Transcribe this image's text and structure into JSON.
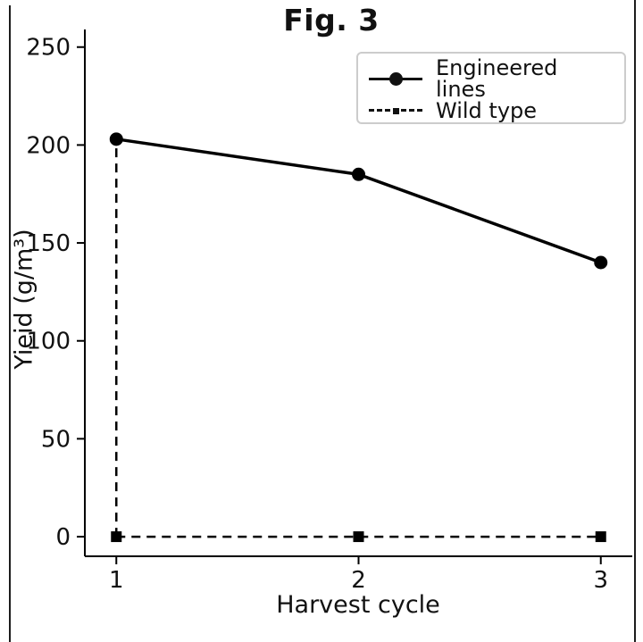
{
  "figure": {
    "title": "Fig. 3",
    "xlabel": "Harvest cycle",
    "ylabel": "Yieid (g/m³)"
  },
  "legend": {
    "position": "upper right",
    "items": [
      {
        "label": "Engineered lines",
        "line_style": "solid",
        "marker": "circle-marker"
      },
      {
        "label": "Wild type",
        "line_style": "dashed",
        "marker": "square-marker"
      }
    ]
  },
  "chart_data": {
    "type": "line",
    "title": "Fig. 3",
    "xlabel": "Harvest cycle",
    "ylabel": "Yieid (g/m³)",
    "x": [
      1,
      2,
      3
    ],
    "series": [
      {
        "name": "Engineered lines",
        "values": [
          203,
          185,
          140
        ],
        "line": "solid",
        "marker": "circle"
      },
      {
        "name": "Wild type",
        "values": [
          0,
          0,
          0
        ],
        "line": "dashed",
        "marker": "square"
      }
    ],
    "annotations": [
      {
        "type": "vertical-dashed-drop-line",
        "x": 1,
        "y_from": 0,
        "y_to": 203
      }
    ],
    "xticks": [
      1,
      2,
      3
    ],
    "yticks": [
      0,
      50,
      100,
      150,
      200,
      250
    ],
    "xlim": [
      0.87,
      3.13
    ],
    "ylim": [
      -10,
      259
    ],
    "grid": false,
    "legend_position": "upper right",
    "colors": {
      "line": "#000000",
      "text": "#111111",
      "background": "#ffffff",
      "legend_border": "#cccccc",
      "frame": "#1c1c1c"
    }
  }
}
